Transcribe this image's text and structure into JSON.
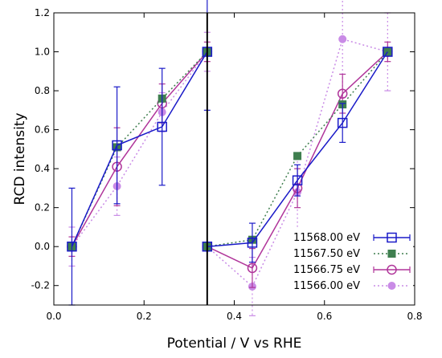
{
  "chart_data": {
    "type": "line",
    "xlabel": "Potential / V vs RHE",
    "ylabel": "RCD intensity",
    "xlim": [
      0.0,
      0.8
    ],
    "ylim": [
      -0.3,
      1.2
    ],
    "xticks": [
      0.0,
      0.2,
      0.4,
      0.6,
      0.8
    ],
    "yticks": [
      -0.2,
      0.0,
      0.2,
      0.4,
      0.6,
      0.8,
      1.0,
      1.2
    ],
    "xtick_labels": [
      "0.0",
      "0.2",
      "0.4",
      "0.6",
      "0.8"
    ],
    "ytick_labels": [
      "-0.2",
      "0.0",
      "0.2",
      "0.4",
      "0.6",
      "0.8",
      "1.0",
      "1.2"
    ],
    "divider_x": 0.34,
    "grid": false,
    "legend_position": "bottom-right",
    "series": [
      {
        "name": "11568.00 eV",
        "color": "#1a1ac8",
        "marker": "open-square",
        "line": "solid",
        "segments": [
          {
            "x": [
              0.04,
              0.14,
              0.24,
              0.34
            ],
            "y": [
              0.0,
              0.52,
              0.615,
              1.0
            ],
            "err": [
              0.3,
              0.3,
              0.3,
              0.3
            ]
          },
          {
            "x": [
              0.34,
              0.44,
              0.54,
              0.64,
              0.74
            ],
            "y": [
              0.0,
              0.02,
              0.34,
              0.635,
              1.0
            ],
            "err": [
              0.0,
              0.1,
              0.08,
              0.1,
              0.0
            ]
          }
        ]
      },
      {
        "name": "11567.50 eV",
        "color": "#3f7f4f",
        "marker": "filled-square",
        "line": "dotted",
        "segments": [
          {
            "x": [
              0.04,
              0.14,
              0.24,
              0.34
            ],
            "y": [
              0.0,
              0.51,
              0.76,
              1.0
            ],
            "err": [
              0.0,
              0.0,
              0.0,
              0.0
            ]
          },
          {
            "x": [
              0.34,
              0.44,
              0.54,
              0.64,
              0.74
            ],
            "y": [
              0.0,
              0.035,
              0.465,
              0.73,
              1.0
            ],
            "err": [
              0.0,
              0.0,
              0.0,
              0.0,
              0.0
            ]
          }
        ]
      },
      {
        "name": "11566.75 eV",
        "color": "#b0359a",
        "marker": "open-circle",
        "line": "solid",
        "segments": [
          {
            "x": [
              0.04,
              0.14,
              0.24,
              0.34
            ],
            "y": [
              0.0,
              0.41,
              0.735,
              1.0
            ],
            "err": [
              0.05,
              0.2,
              0.1,
              0.05
            ]
          },
          {
            "x": [
              0.34,
              0.44,
              0.54,
              0.64,
              0.74
            ],
            "y": [
              0.0,
              -0.11,
              0.3,
              0.785,
              1.0
            ],
            "err": [
              0.0,
              0.1,
              0.1,
              0.1,
              0.05
            ]
          }
        ]
      },
      {
        "name": "11566.00 eV",
        "color": "#c98be6",
        "marker": "filled-circle",
        "line": "dotted",
        "segments": [
          {
            "x": [
              0.04,
              0.14,
              0.24,
              0.34
            ],
            "y": [
              0.0,
              0.31,
              0.69,
              1.0
            ],
            "err": [
              0.1,
              0.15,
              0.1,
              0.1
            ]
          },
          {
            "x": [
              0.34,
              0.44,
              0.54,
              0.64,
              0.74
            ],
            "y": [
              0.0,
              -0.205,
              0.28,
              1.065,
              1.0
            ],
            "err": [
              0.0,
              0.15,
              0.2,
              0.3,
              0.2
            ]
          }
        ]
      }
    ]
  }
}
